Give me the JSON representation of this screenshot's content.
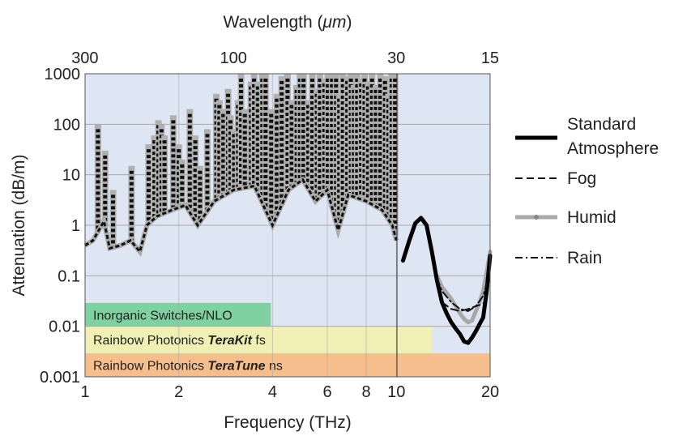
{
  "chart_data": {
    "type": "line",
    "x_axis": {
      "label": "Frequency (THz)",
      "scale": "log",
      "range": [
        1,
        20
      ],
      "ticks": [
        "1",
        "2",
        "4",
        "6",
        "8",
        "10",
        "20"
      ]
    },
    "y_axis": {
      "label": "Attenuation (dB/m)",
      "scale": "log",
      "range": [
        0.001,
        1000
      ],
      "ticks": [
        "0.001",
        "0.01",
        "0.1",
        "1",
        "10",
        "100",
        "1000"
      ]
    },
    "top_axis": {
      "label_prefix": "Wavelength (",
      "label_unit": "μm",
      "label_suffix": ")",
      "ticks": [
        "300",
        "100",
        "30",
        "15"
      ]
    },
    "grid": true,
    "legend_position": "right",
    "series": [
      {
        "name_line1": "Standard",
        "name_line2": "Atmosphere",
        "style": "solid-thick",
        "points": [
          [
            10.5,
            0.2
          ],
          [
            11.0,
            0.5
          ],
          [
            11.5,
            1.1
          ],
          [
            12.0,
            1.4
          ],
          [
            12.5,
            1.0
          ],
          [
            13.0,
            0.3
          ],
          [
            13.5,
            0.08
          ],
          [
            14.0,
            0.03
          ],
          [
            14.5,
            0.018
          ],
          [
            15.0,
            0.012
          ],
          [
            15.5,
            0.009
          ],
          [
            16.0,
            0.007
          ],
          [
            16.5,
            0.005
          ],
          [
            17.0,
            0.0047
          ],
          [
            17.5,
            0.006
          ],
          [
            18.0,
            0.008
          ],
          [
            18.5,
            0.011
          ],
          [
            19.0,
            0.015
          ],
          [
            19.5,
            0.05
          ],
          [
            20.0,
            0.25
          ]
        ]
      },
      {
        "name": "Fog",
        "style": "dashed",
        "points": [
          [
            14.0,
            0.03
          ],
          [
            15.0,
            0.022
          ],
          [
            16.0,
            0.02
          ],
          [
            17.0,
            0.022
          ],
          [
            18.0,
            0.025
          ],
          [
            19.0,
            0.028
          ],
          [
            19.5,
            0.04
          ]
        ]
      },
      {
        "name": "Humid",
        "style": "gray-thick",
        "points": [
          [
            13.5,
            0.1
          ],
          [
            14.0,
            0.06
          ],
          [
            15.0,
            0.035
          ],
          [
            15.5,
            0.025
          ],
          [
            16.0,
            0.018
          ],
          [
            16.5,
            0.014
          ],
          [
            17.0,
            0.012
          ],
          [
            17.5,
            0.013
          ],
          [
            18.0,
            0.02
          ],
          [
            18.5,
            0.03
          ],
          [
            19.0,
            0.05
          ],
          [
            19.5,
            0.12
          ],
          [
            20.0,
            0.3
          ]
        ]
      },
      {
        "name": "Rain",
        "style": "dash-dot",
        "points": [
          [
            13.5,
            0.09
          ],
          [
            14.0,
            0.05
          ],
          [
            15.0,
            0.03
          ],
          [
            16.0,
            0.022
          ],
          [
            17.0,
            0.02
          ],
          [
            18.0,
            0.025
          ],
          [
            19.0,
            0.04
          ],
          [
            19.5,
            0.07
          ]
        ]
      }
    ],
    "absorption_lines_THz": {
      "peaks": [
        [
          1.1,
          100
        ],
        [
          1.16,
          30
        ],
        [
          1.23,
          5
        ],
        [
          1.41,
          15
        ],
        [
          1.6,
          40
        ],
        [
          1.67,
          60
        ],
        [
          1.72,
          120
        ],
        [
          1.76,
          100
        ],
        [
          1.8,
          60
        ],
        [
          1.92,
          150
        ],
        [
          2.0,
          40
        ],
        [
          2.05,
          20
        ],
        [
          2.17,
          200
        ],
        [
          2.26,
          60
        ],
        [
          2.34,
          15
        ],
        [
          2.47,
          80
        ],
        [
          2.64,
          400
        ],
        [
          2.7,
          300
        ],
        [
          2.78,
          200
        ],
        [
          2.88,
          500
        ],
        [
          2.93,
          150
        ],
        [
          3.01,
          80
        ],
        [
          3.1,
          300
        ],
        [
          3.17,
          1000
        ],
        [
          3.26,
          200
        ],
        [
          3.41,
          700
        ],
        [
          3.49,
          1000
        ],
        [
          3.59,
          700
        ],
        [
          3.71,
          1000
        ],
        [
          3.8,
          1000
        ],
        [
          3.96,
          200
        ],
        [
          4.13,
          400
        ],
        [
          4.28,
          900
        ],
        [
          4.47,
          1000
        ],
        [
          4.61,
          300
        ],
        [
          4.78,
          600
        ],
        [
          4.9,
          1000
        ],
        [
          5.03,
          1000
        ],
        [
          5.21,
          300
        ],
        [
          5.37,
          1000
        ],
        [
          5.55,
          500
        ],
        [
          5.68,
          1000
        ],
        [
          5.87,
          800
        ],
        [
          6.02,
          1000
        ],
        [
          6.21,
          1000
        ],
        [
          6.4,
          1000
        ],
        [
          6.55,
          400
        ],
        [
          6.73,
          1000
        ],
        [
          6.95,
          900
        ],
        [
          7.14,
          1000
        ],
        [
          7.3,
          600
        ],
        [
          7.48,
          1000
        ],
        [
          7.7,
          800
        ],
        [
          7.9,
          1000
        ],
        [
          8.11,
          700
        ],
        [
          8.35,
          1000
        ],
        [
          8.59,
          600
        ],
        [
          8.88,
          1000
        ],
        [
          9.19,
          900
        ],
        [
          9.42,
          400
        ],
        [
          9.65,
          1000
        ],
        [
          9.9,
          1000
        ]
      ],
      "floor": [
        [
          1.0,
          0.4
        ],
        [
          1.06,
          0.5
        ],
        [
          1.15,
          1.2
        ],
        [
          1.2,
          0.35
        ],
        [
          1.3,
          0.4
        ],
        [
          1.4,
          0.5
        ],
        [
          1.5,
          0.3
        ],
        [
          1.58,
          1.0
        ],
        [
          1.7,
          1.5
        ],
        [
          1.9,
          2.0
        ],
        [
          2.1,
          2.5
        ],
        [
          2.3,
          1.0
        ],
        [
          2.6,
          3.0
        ],
        [
          3.0,
          5.0
        ],
        [
          3.5,
          6.0
        ],
        [
          4.0,
          1.0
        ],
        [
          4.5,
          5.0
        ],
        [
          5.0,
          8.0
        ],
        [
          5.5,
          3.0
        ],
        [
          6.0,
          5.0
        ],
        [
          6.5,
          0.8
        ],
        [
          7.0,
          4.0
        ],
        [
          8.0,
          3.0
        ],
        [
          9.0,
          2.0
        ],
        [
          9.7,
          1.0
        ],
        [
          10.0,
          0.5
        ]
      ]
    },
    "bands": [
      {
        "label": "Inorganic Switches/NLO",
        "x_range": [
          1,
          3.95
        ],
        "y_range": [
          0.01,
          0.029
        ],
        "color": "#7fd1a1"
      },
      {
        "label_pre": "Rainbow Photonics ",
        "label_em": "TeraKit",
        "label_post": " fs",
        "x_range": [
          1,
          13.0
        ],
        "y_range": [
          0.003,
          0.0099
        ],
        "color": "#f0f0b4"
      },
      {
        "label_pre": "Rainbow Photonics ",
        "label_em": "TeraTune",
        "label_post": " ns",
        "x_range": [
          1,
          20
        ],
        "y_range": [
          0.001,
          0.0029
        ],
        "color": "#f5be8c"
      }
    ],
    "colors": {
      "plot_background": "#dde6f2",
      "grid": "#a9a9a9",
      "standard": "#000000",
      "humid": "#a8a8a8"
    }
  }
}
